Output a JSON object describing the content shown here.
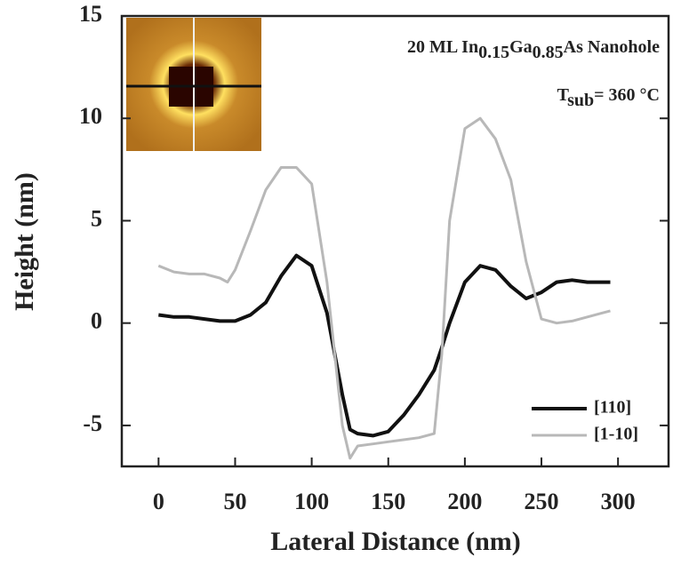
{
  "chart_data": {
    "type": "line",
    "xlabel": "Lateral Distance (nm)",
    "ylabel": "Height (nm)",
    "annotation_1": {
      "text": [
        "20 ML In",
        "Ga",
        "As Nanohole"
      ],
      "subscripts": [
        "0.15",
        "0.85"
      ]
    },
    "annotation_2": {
      "text": [
        "T",
        "= 360 °C"
      ],
      "subscripts": [
        "sub"
      ]
    },
    "x": [
      0,
      10,
      20,
      30,
      40,
      45,
      50,
      60,
      70,
      80,
      90,
      100,
      110,
      120,
      125,
      130,
      140,
      150,
      160,
      170,
      180,
      185,
      190,
      200,
      210,
      220,
      230,
      240,
      250,
      260,
      270,
      280,
      290,
      295
    ],
    "series": [
      {
        "name": "[110]",
        "color": "#111111",
        "width": 4,
        "values": [
          0.4,
          0.3,
          0.3,
          0.2,
          0.1,
          0.1,
          0.1,
          0.4,
          1.0,
          2.3,
          3.3,
          2.8,
          0.5,
          -3.5,
          -5.2,
          -5.4,
          -5.5,
          -5.3,
          -4.5,
          -3.5,
          -2.3,
          -1.2,
          0.0,
          2.0,
          2.8,
          2.6,
          1.8,
          1.2,
          1.5,
          2.0,
          2.1,
          2.0,
          2.0,
          2.0
        ]
      },
      {
        "name": "[1-10]",
        "color": "#b8b8b8",
        "width": 3,
        "values": [
          2.8,
          2.5,
          2.4,
          2.4,
          2.2,
          2.0,
          2.6,
          4.5,
          6.5,
          7.6,
          7.6,
          6.8,
          2.0,
          -5.0,
          -6.6,
          -6.0,
          -5.9,
          -5.8,
          -5.7,
          -5.6,
          -5.4,
          -1.5,
          5.0,
          9.5,
          10.0,
          9.0,
          7.0,
          3.0,
          0.2,
          0.0,
          0.1,
          0.3,
          0.5,
          0.6
        ]
      }
    ],
    "xlim": [
      -24,
      333
    ],
    "ylim": [
      -7,
      15
    ],
    "xticks": [
      0,
      50,
      100,
      150,
      200,
      250,
      300
    ],
    "yticks": [
      -5,
      0,
      5,
      10,
      15
    ],
    "legend": "lower right"
  }
}
